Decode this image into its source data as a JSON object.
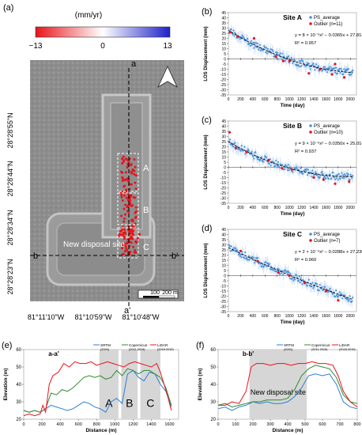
{
  "panel_labels": {
    "a": "(a)",
    "b": "(b)",
    "c": "(c)",
    "d": "(d)",
    "e": "(e)",
    "f": "(f)"
  },
  "map": {
    "colorbar_unit": "(mm/yr)",
    "colorbar_min": "−13",
    "colorbar_mid": "0",
    "colorbar_max": "13",
    "colorbar_colors": [
      "#e8141b",
      "#ffffff",
      "#1e22c8"
    ],
    "lat_labels": [
      "28°28'55\"N",
      "28°28'44\"N",
      "28°28'34\"N",
      "28°28'23\"N"
    ],
    "lon_labels": [
      "81°11'10\"W",
      "81°10'59\"W",
      "81°10'48\"W"
    ],
    "section_labels": {
      "a_top": "a",
      "a_bottom": "a'",
      "b_left": "b",
      "b_right": "b'"
    },
    "site_labels": [
      "A",
      "B",
      "C"
    ],
    "annotation": "New disposal site",
    "scale_labels": [
      "100",
      "200 m"
    ],
    "north_arrow": "north-arrow-icon"
  },
  "chart_data": [
    {
      "type": "scatter",
      "title": "Site A",
      "ylabel": "LOS Displacement (mm)",
      "xlabel": "Time (day)",
      "xlim": [
        0,
        2100
      ],
      "ylim": [
        -35,
        45
      ],
      "xticks": [
        0,
        200,
        400,
        600,
        800,
        1000,
        1200,
        1400,
        1600,
        1800,
        2000
      ],
      "yticks": [
        45,
        40,
        35,
        30,
        25,
        20,
        15,
        10,
        5,
        0,
        -5,
        -10,
        -15,
        -20,
        -25,
        -30,
        -35
      ],
      "legend": [
        "PS_average",
        "Outlier (n=11)"
      ],
      "equation": "y = 8 × 10⁻⁶x² − 0.0365x + 27.814",
      "r2": "R² = 0.957",
      "fit": {
        "a": 8e-06,
        "b": -0.0365,
        "c": 27.814
      },
      "series_colors": {
        "ps": "#4a90d9",
        "outlier": "#e8141b",
        "fit": "#000000"
      },
      "outliers": [
        [
          30,
          26
        ],
        [
          150,
          22
        ],
        [
          420,
          20
        ],
        [
          780,
          2
        ],
        [
          900,
          -2
        ],
        [
          1000,
          -2
        ],
        [
          1320,
          -14
        ],
        [
          1500,
          -10
        ],
        [
          1700,
          -15
        ],
        [
          1750,
          -5
        ],
        [
          1900,
          -18
        ]
      ]
    },
    {
      "type": "scatter",
      "title": "Site B",
      "ylabel": "LOS Displacement (mm)",
      "xlabel": "Time (day)",
      "xlim": [
        0,
        2100
      ],
      "ylim": [
        -35,
        45
      ],
      "xticks": [
        0,
        200,
        400,
        600,
        800,
        1000,
        1200,
        1400,
        1600,
        1800,
        2000
      ],
      "yticks": [
        45,
        40,
        35,
        30,
        25,
        20,
        15,
        10,
        5,
        0,
        -5,
        -10,
        -15,
        -20,
        -25,
        -30,
        -35
      ],
      "legend": [
        "PS_average",
        "Outlier (n=10)"
      ],
      "equation": "y = 9 × 10⁻⁶x² − 0.0350x + 25.014",
      "r2": "R² = 0.937",
      "fit": {
        "a": 9e-06,
        "b": -0.035,
        "c": 25.014
      },
      "series_colors": {
        "ps": "#4a90d9",
        "outlier": "#e8141b",
        "fit": "#000000"
      },
      "outliers": [
        [
          20,
          34
        ],
        [
          120,
          19
        ],
        [
          300,
          15
        ],
        [
          660,
          7
        ],
        [
          880,
          -1
        ],
        [
          1040,
          -2
        ],
        [
          1400,
          -10
        ],
        [
          1560,
          -12
        ],
        [
          1750,
          -16
        ],
        [
          1980,
          -14
        ]
      ]
    },
    {
      "type": "scatter",
      "title": "Site C",
      "ylabel": "LOS Displacement (mm)",
      "xlabel": "Time (day)",
      "xlim": [
        0,
        2100
      ],
      "ylim": [
        -35,
        45
      ],
      "xticks": [
        0,
        200,
        400,
        600,
        800,
        1000,
        1200,
        1400,
        1600,
        1800,
        2000
      ],
      "yticks": [
        45,
        40,
        35,
        30,
        25,
        20,
        15,
        10,
        5,
        0,
        -5,
        -10,
        -15,
        -20,
        -25,
        -30,
        -35
      ],
      "legend": [
        "PS_average",
        "Outlier (n=7)"
      ],
      "equation": "y = 2 × 10⁻⁶x² − 0.0288x + 27.230",
      "r2": "R² = 0.960",
      "fit": {
        "a": 2e-06,
        "b": -0.0288,
        "c": 27.23
      },
      "series_colors": {
        "ps": "#4a90d9",
        "outlier": "#e8141b",
        "fit": "#000000"
      },
      "outliers": [
        [
          200,
          24
        ],
        [
          480,
          14
        ],
        [
          820,
          3
        ],
        [
          1000,
          0
        ],
        [
          1250,
          -7
        ],
        [
          1600,
          -15
        ],
        [
          1800,
          -24
        ]
      ]
    },
    {
      "type": "line",
      "title": "a-a'",
      "ylabel": "Elevation (m)",
      "xlabel": "Distance (m)",
      "xlim": [
        0,
        1700
      ],
      "ylim": [
        20,
        60
      ],
      "xticks": [
        0,
        200,
        400,
        600,
        800,
        1000,
        1200,
        1400,
        1600
      ],
      "yticks": [
        20,
        30,
        40,
        50,
        60
      ],
      "shaded": [
        {
          "label": "A",
          "x0": 830,
          "x1": 1040
        },
        {
          "label": "B",
          "x0": 1070,
          "x1": 1250
        },
        {
          "label": "C",
          "x0": 1280,
          "x1": 1500
        }
      ],
      "series": [
        {
          "name": "SRTM (2000)",
          "color": "#2a7fd4",
          "x": [
            0,
            60,
            120,
            180,
            240,
            300,
            360,
            420,
            480,
            540,
            600,
            660,
            720,
            780,
            840,
            900,
            960,
            1020,
            1080,
            1140,
            1200,
            1260,
            1320,
            1380,
            1440,
            1500,
            1560,
            1620
          ],
          "y": [
            25,
            24,
            25,
            24,
            26,
            28,
            27,
            26,
            25,
            26,
            28,
            30,
            29,
            27,
            26,
            24,
            30,
            32,
            29,
            46,
            48,
            44,
            42,
            47,
            46,
            40,
            36,
            27
          ]
        },
        {
          "name": "Copernicus (2011-2015)",
          "color": "#2e8b2e",
          "x": [
            0,
            60,
            120,
            180,
            240,
            300,
            360,
            420,
            480,
            540,
            600,
            660,
            720,
            780,
            840,
            900,
            960,
            1020,
            1080,
            1140,
            1200,
            1260,
            1320,
            1380,
            1440,
            1500,
            1560,
            1620
          ],
          "y": [
            25,
            24,
            25,
            24,
            26,
            35,
            34,
            37,
            36,
            38,
            41,
            44,
            45,
            44,
            45,
            43,
            44,
            48,
            45,
            49,
            48,
            46,
            48,
            48,
            46,
            44,
            38,
            28
          ]
        },
        {
          "name": "LiDAR (2018-2019)",
          "color": "#e8141b",
          "x": [
            0,
            60,
            120,
            180,
            210,
            240,
            280,
            320,
            380,
            440,
            500,
            560,
            620,
            680,
            740,
            800,
            860,
            920,
            980,
            1040,
            1100,
            1160,
            1220,
            1280,
            1340,
            1400,
            1460,
            1500,
            1540,
            1580,
            1620
          ],
          "y": [
            22,
            23,
            22,
            23,
            28,
            24,
            40,
            45,
            47,
            52,
            50,
            53,
            52,
            52,
            53,
            51,
            52,
            53,
            52,
            51,
            50,
            52,
            53,
            52,
            51,
            50,
            52,
            47,
            40,
            33,
            25
          ]
        }
      ]
    },
    {
      "type": "line",
      "title": "b-b'",
      "ylabel": "Elevation (m)",
      "xlabel": "Distance (m)",
      "xlim": [
        0,
        800
      ],
      "ylim": [
        20,
        60
      ],
      "xticks": [
        0,
        100,
        200,
        300,
        400,
        500,
        600,
        700,
        800
      ],
      "yticks": [
        20,
        30,
        40,
        50,
        60
      ],
      "shaded": [
        {
          "label": "New disposal site",
          "x0": 180,
          "x1": 510
        }
      ],
      "series": [
        {
          "name": "SRTM (2000)",
          "color": "#2a7fd4",
          "x": [
            0,
            40,
            80,
            120,
            160,
            200,
            240,
            280,
            320,
            360,
            400,
            440,
            480,
            520,
            560,
            600,
            640,
            680,
            720,
            760,
            800
          ],
          "y": [
            26,
            27,
            25,
            27,
            28,
            30,
            29,
            30,
            29,
            29,
            30,
            33,
            38,
            45,
            46,
            45,
            46,
            40,
            30,
            27,
            26
          ]
        },
        {
          "name": "Copernicus (2011-2015)",
          "color": "#2e8b2e",
          "x": [
            0,
            40,
            80,
            120,
            160,
            200,
            240,
            280,
            320,
            360,
            400,
            440,
            480,
            520,
            560,
            600,
            640,
            680,
            720,
            760,
            800
          ],
          "y": [
            28,
            29,
            27,
            28,
            29,
            30,
            30,
            31,
            31,
            31,
            32,
            37,
            45,
            49,
            51,
            50,
            49,
            44,
            34,
            30,
            29
          ]
        },
        {
          "name": "LiDAR (2018-2019)",
          "color": "#e8141b",
          "x": [
            0,
            40,
            80,
            120,
            160,
            190,
            220,
            260,
            300,
            340,
            380,
            420,
            460,
            500,
            540,
            580,
            620,
            660,
            690,
            720,
            760,
            800
          ],
          "y": [
            28,
            28,
            30,
            29,
            36,
            50,
            52,
            52,
            51,
            52,
            52,
            51,
            52,
            52,
            53,
            52,
            52,
            51,
            45,
            36,
            30,
            27
          ]
        }
      ]
    }
  ]
}
